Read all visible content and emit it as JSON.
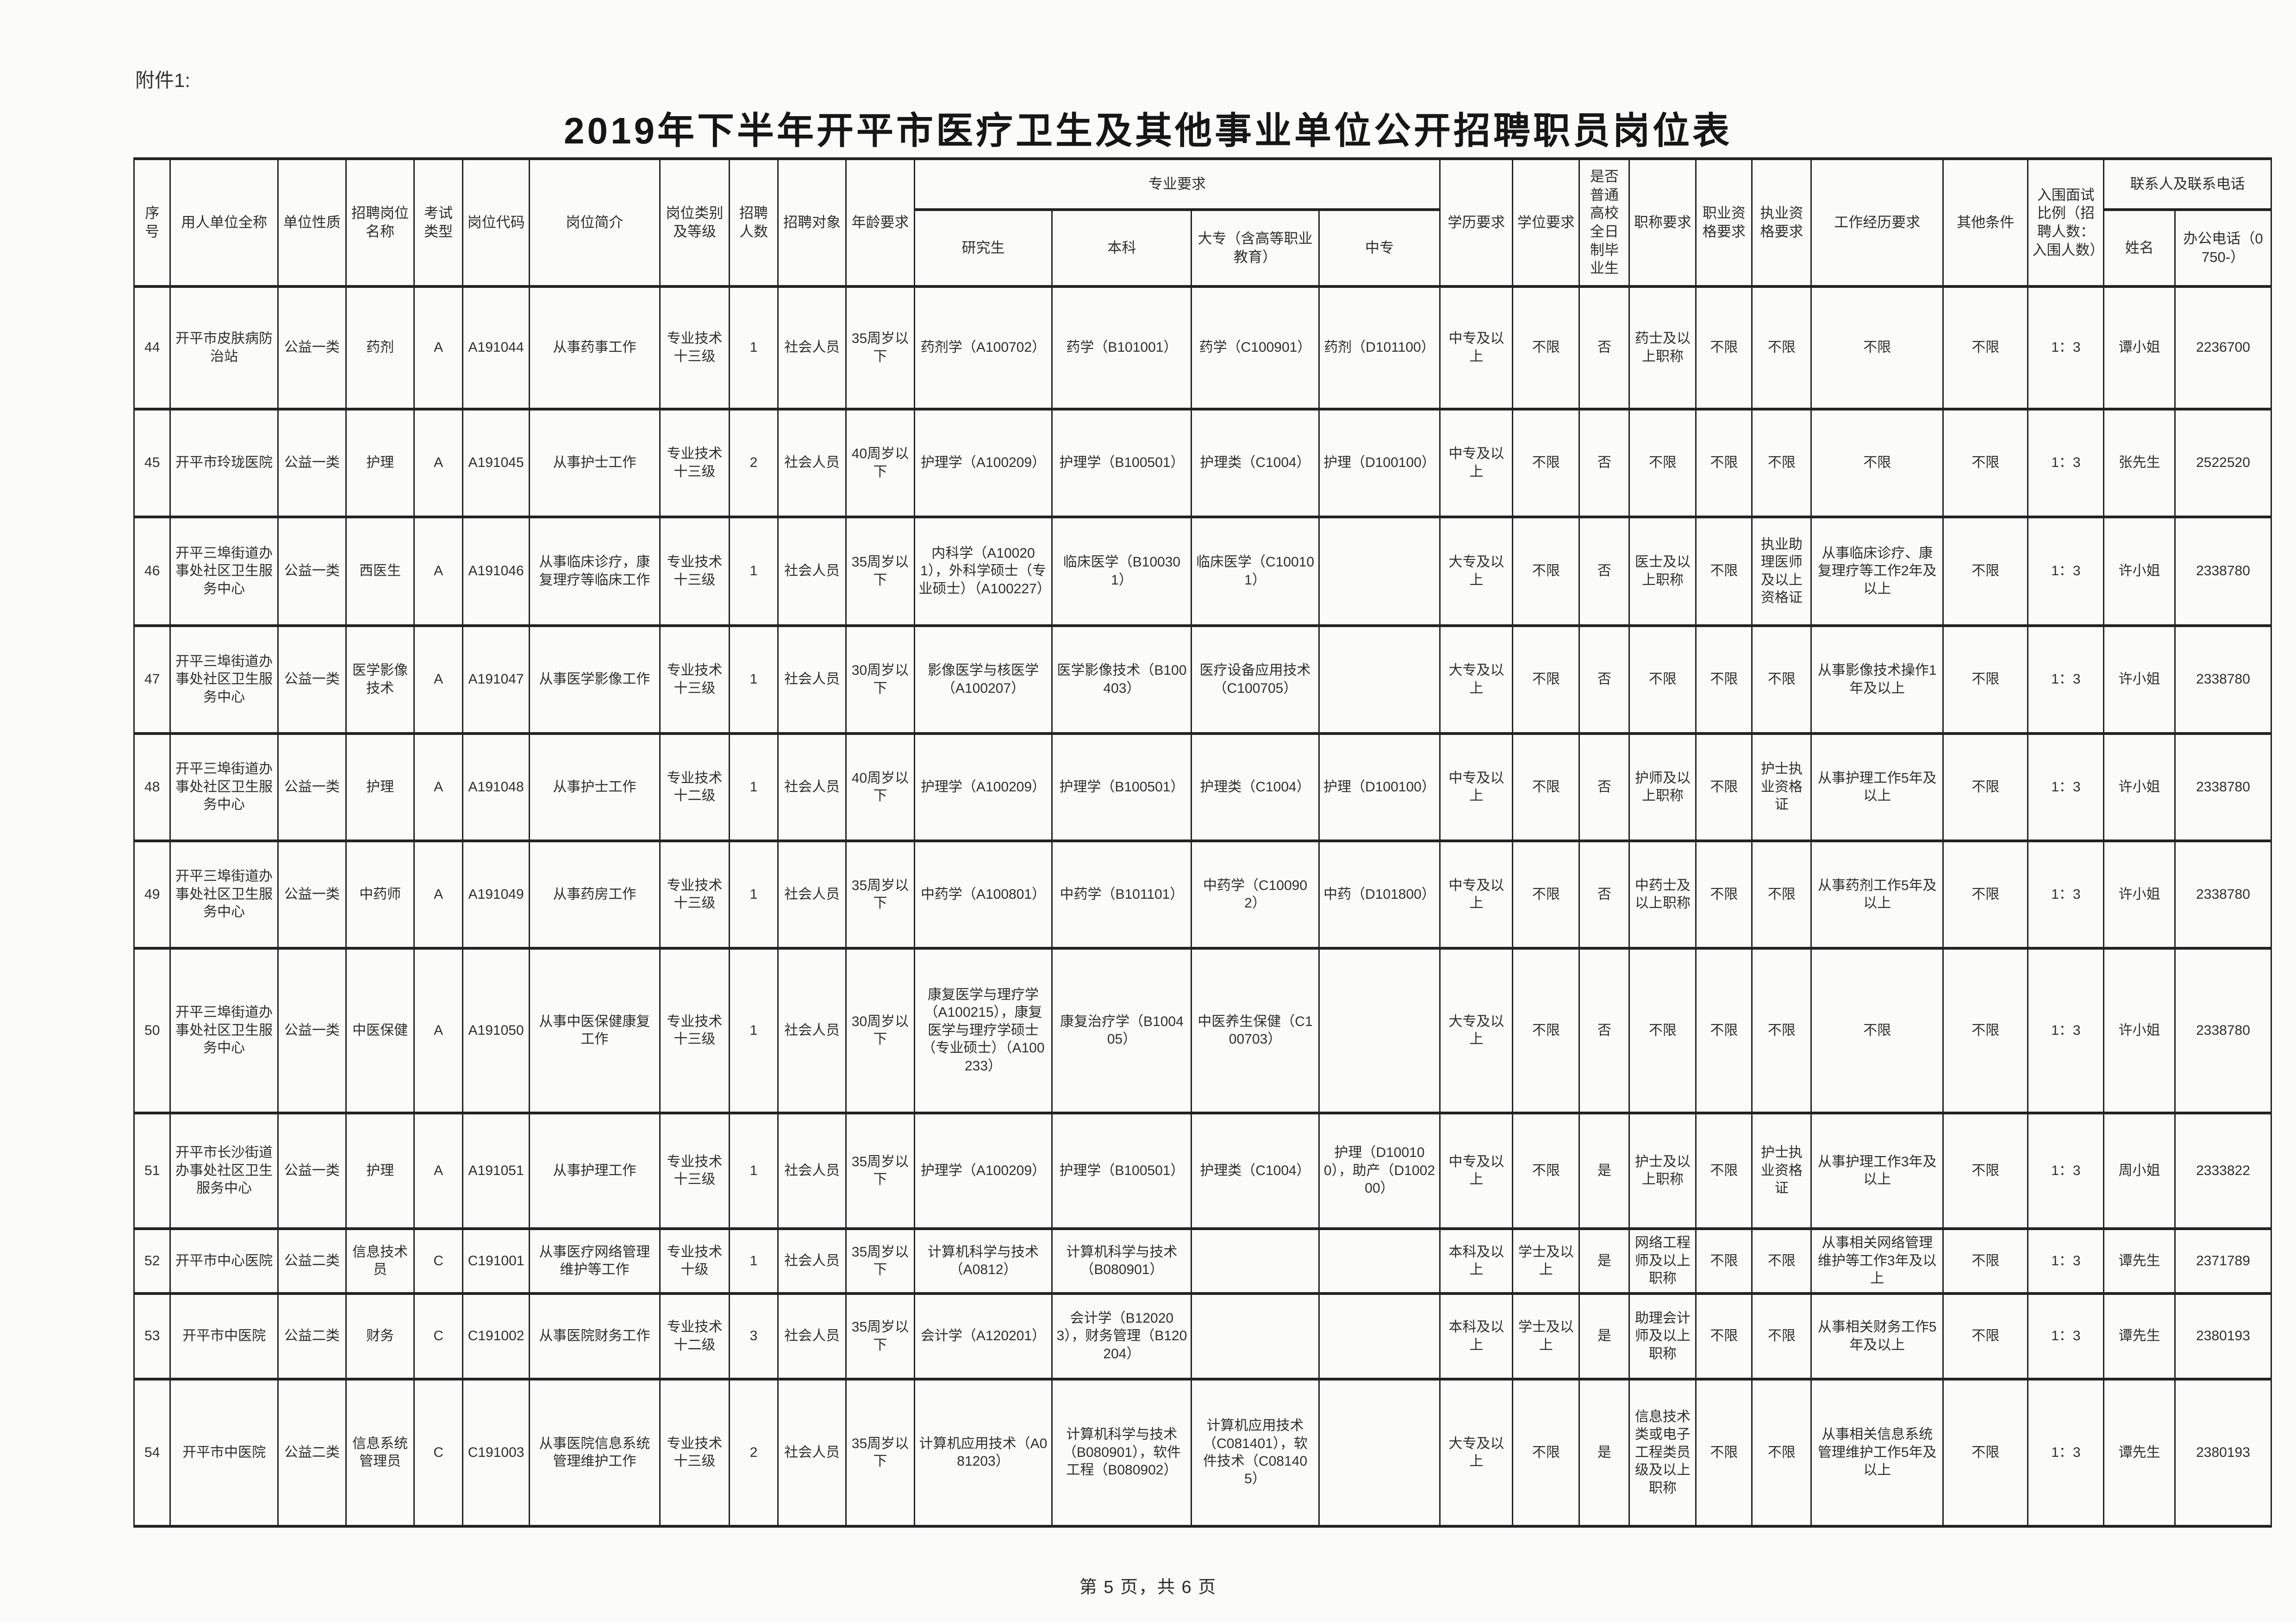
{
  "page": {
    "attachment_label": "附件1:",
    "title": "2019年下半年开平市医疗卫生及其他事业单位公开招聘职员岗位表",
    "footer": "第 5 页，共 6 页"
  },
  "table": {
    "headers": {
      "index": "序号",
      "employer": "用人单位全称",
      "unit_type": "单位性质",
      "position_name": "招聘岗位名称",
      "exam_type": "考试类型",
      "position_code": "岗位代码",
      "position_intro": "岗位简介",
      "category_level": "岗位类别及等级",
      "headcount": "招聘人数",
      "target": "招聘对象",
      "age": "年龄要求",
      "major_group": "专业要求",
      "major_postgrad": "研究生",
      "major_bachelor": "本科",
      "major_college": "大专（含高等职业教育）",
      "major_secondary": "中专",
      "education": "学历要求",
      "degree": "学位要求",
      "fulltime": "是否普通高校全日制毕业生",
      "title_req": "职称要求",
      "vocational_req": "职业资格要求",
      "practice_req": "执业资格要求",
      "experience": "工作经历要求",
      "other": "其他条件",
      "ratio": "入围面试比例（招聘人数：入围人数）",
      "contact_group": "联系人及联系电话",
      "contact_name": "姓名",
      "contact_phone": "办公电话（0750-）"
    },
    "column_keys": [
      "index",
      "employer",
      "unit_type",
      "position_name",
      "exam_type",
      "position_code",
      "position_intro",
      "category_level",
      "headcount",
      "target",
      "age",
      "major_postgrad",
      "major_bachelor",
      "major_college",
      "major_secondary",
      "education",
      "degree",
      "fulltime",
      "title_req",
      "vocational_req",
      "practice_req",
      "experience",
      "other",
      "ratio",
      "contact_name",
      "contact_phone"
    ],
    "rows": [
      [
        "44",
        "开平市皮肤病防治站",
        "公益一类",
        "药剂",
        "A",
        "A191044",
        "从事药事工作",
        "专业技术十三级",
        "1",
        "社会人员",
        "35周岁以下",
        "药剂学（A100702）",
        "药学（B101001）",
        "药学（C100901）",
        "药剂（D101100）",
        "中专及以上",
        "不限",
        "否",
        "药士及以上职称",
        "不限",
        "不限",
        "不限",
        "不限",
        "1：3",
        "谭小姐",
        "2236700"
      ],
      [
        "45",
        "开平市玲珑医院",
        "公益一类",
        "护理",
        "A",
        "A191045",
        "从事护士工作",
        "专业技术十三级",
        "2",
        "社会人员",
        "40周岁以下",
        "护理学（A100209）",
        "护理学（B100501）",
        "护理类（C1004）",
        "护理（D100100）",
        "中专及以上",
        "不限",
        "否",
        "不限",
        "不限",
        "不限",
        "不限",
        "不限",
        "1：3",
        "张先生",
        "2522520"
      ],
      [
        "46",
        "开平三埠街道办事处社区卫生服务中心",
        "公益一类",
        "西医生",
        "A",
        "A191046",
        "从事临床诊疗，康复理疗等临床工作",
        "专业技术十三级",
        "1",
        "社会人员",
        "35周岁以下",
        "内科学（A100201），外科学硕士（专业硕士）（A100227）",
        "临床医学（B100301）",
        "临床医学（C100101）",
        "",
        "大专及以上",
        "不限",
        "否",
        "医士及以上职称",
        "不限",
        "执业助理医师及以上资格证",
        "从事临床诊疗、康复理疗等工作2年及以上",
        "不限",
        "1：3",
        "许小姐",
        "2338780"
      ],
      [
        "47",
        "开平三埠街道办事处社区卫生服务中心",
        "公益一类",
        "医学影像技术",
        "A",
        "A191047",
        "从事医学影像工作",
        "专业技术十三级",
        "1",
        "社会人员",
        "30周岁以下",
        "影像医学与核医学（A100207）",
        "医学影像技术（B100403）",
        "医疗设备应用技术（C100705）",
        "",
        "大专及以上",
        "不限",
        "否",
        "不限",
        "不限",
        "不限",
        "从事影像技术操作1年及以上",
        "不限",
        "1：3",
        "许小姐",
        "2338780"
      ],
      [
        "48",
        "开平三埠街道办事处社区卫生服务中心",
        "公益一类",
        "护理",
        "A",
        "A191048",
        "从事护士工作",
        "专业技术十二级",
        "1",
        "社会人员",
        "40周岁以下",
        "护理学（A100209）",
        "护理学（B100501）",
        "护理类（C1004）",
        "护理（D100100）",
        "中专及以上",
        "不限",
        "否",
        "护师及以上职称",
        "不限",
        "护士执业资格证",
        "从事护理工作5年及以上",
        "不限",
        "1：3",
        "许小姐",
        "2338780"
      ],
      [
        "49",
        "开平三埠街道办事处社区卫生服务中心",
        "公益一类",
        "中药师",
        "A",
        "A191049",
        "从事药房工作",
        "专业技术十三级",
        "1",
        "社会人员",
        "35周岁以下",
        "中药学（A100801）",
        "中药学（B101101）",
        "中药学（C100902）",
        "中药（D101800）",
        "中专及以上",
        "不限",
        "否",
        "中药士及以上职称",
        "不限",
        "不限",
        "从事药剂工作5年及以上",
        "不限",
        "1：3",
        "许小姐",
        "2338780"
      ],
      [
        "50",
        "开平三埠街道办事处社区卫生服务中心",
        "公益一类",
        "中医保健",
        "A",
        "A191050",
        "从事中医保健康复工作",
        "专业技术十三级",
        "1",
        "社会人员",
        "30周岁以下",
        "康复医学与理疗学（A100215），康复医学与理疗学硕士（专业硕士）（A100233）",
        "康复治疗学（B100405）",
        "中医养生保健（C100703）",
        "",
        "大专及以上",
        "不限",
        "否",
        "不限",
        "不限",
        "不限",
        "不限",
        "不限",
        "1：3",
        "许小姐",
        "2338780"
      ],
      [
        "51",
        "开平市长沙街道办事处社区卫生服务中心",
        "公益一类",
        "护理",
        "A",
        "A191051",
        "从事护理工作",
        "专业技术十三级",
        "1",
        "社会人员",
        "35周岁以下",
        "护理学（A100209）",
        "护理学（B100501）",
        "护理类（C1004）",
        "护理（D100100），助产（D100200）",
        "中专及以上",
        "不限",
        "是",
        "护士及以上职称",
        "不限",
        "护士执业资格证",
        "从事护理工作3年及以上",
        "不限",
        "1：3",
        "周小姐",
        "2333822"
      ],
      [
        "52",
        "开平市中心医院",
        "公益二类",
        "信息技术员",
        "C",
        "C191001",
        "从事医疗网络管理维护等工作",
        "专业技术十级",
        "1",
        "社会人员",
        "35周岁以下",
        "计算机科学与技术（A0812）",
        "计算机科学与技术（B080901）",
        "",
        "",
        "本科及以上",
        "学士及以上",
        "是",
        "网络工程师及以上职称",
        "不限",
        "不限",
        "从事相关网络管理维护等工作3年及以上",
        "不限",
        "1：3",
        "谭先生",
        "2371789"
      ],
      [
        "53",
        "开平市中医院",
        "公益二类",
        "财务",
        "C",
        "C191002",
        "从事医院财务工作",
        "专业技术十二级",
        "3",
        "社会人员",
        "35周岁以下",
        "会计学（A120201）",
        "会计学（B120203），财务管理（B120204）",
        "",
        "",
        "本科及以上",
        "学士及以上",
        "是",
        "助理会计师及以上职称",
        "不限",
        "不限",
        "从事相关财务工作5年及以上",
        "不限",
        "1：3",
        "谭先生",
        "2380193"
      ],
      [
        "54",
        "开平市中医院",
        "公益二类",
        "信息系统管理员",
        "C",
        "C191003",
        "从事医院信息系统管理维护工作",
        "专业技术十三级",
        "2",
        "社会人员",
        "35周岁以下",
        "计算机应用技术（A081203）",
        "计算机科学与技术（B080901），软件工程（B080902）",
        "计算机应用技术（C081401），软件技术（C081405）",
        "",
        "大专及以上",
        "不限",
        "是",
        "信息技术类或电子工程类员级及以上职称",
        "不限",
        "不限",
        "从事相关信息系统管理维护工作5年及以上",
        "不限",
        "1：3",
        "谭先生",
        "2380193"
      ]
    ]
  }
}
